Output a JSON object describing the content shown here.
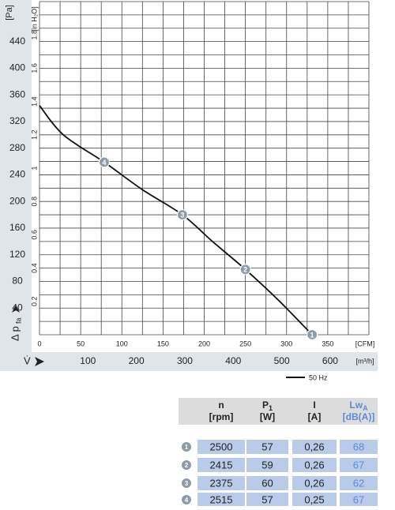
{
  "chart_data": {
    "type": "line",
    "y_unit": "[Pa]",
    "y2_unit": "[in H₂O]",
    "x_unit": "[CFM]",
    "x2_unit": "[m³/h]",
    "y_label": "Δ p",
    "y_label_sub": "fa",
    "x_label": "V̇",
    "xlim": [
      0,
      400
    ],
    "xticks": [
      0,
      50,
      100,
      150,
      200,
      250,
      300,
      350
    ],
    "x2lim": [
      0,
      680
    ],
    "x2ticks": [
      100,
      200,
      300,
      400,
      500,
      600
    ],
    "ylim": [
      0,
      500
    ],
    "yticks": [
      40,
      80,
      120,
      160,
      200,
      240,
      280,
      320,
      360,
      400,
      440
    ],
    "y2lim": [
      0,
      2.0
    ],
    "y2ticks": [
      0.2,
      0.4,
      0.6,
      0.8,
      1.0,
      1.2,
      1.4,
      1.6,
      1.8
    ],
    "grid": true,
    "grid_step": {
      "x": 25,
      "y": 20
    },
    "series": [
      {
        "name": "50 Hz",
        "color": "#111111",
        "x": [
          0,
          29,
          78.6,
          124.6,
          173.5,
          210,
          250,
          290,
          331
        ],
        "values": [
          344,
          300,
          259,
          218,
          180,
          140,
          98,
          52,
          0
        ]
      }
    ],
    "operating_points": {
      "labels": [
        "1",
        "2",
        "3",
        "4"
      ],
      "x": [
        331,
        250,
        173.5,
        78.6
      ],
      "y": [
        0,
        98,
        180,
        259
      ]
    },
    "table": {
      "columns": [
        {
          "name": "n",
          "unit": "[rpm]"
        },
        {
          "name": "P",
          "sub": "1",
          "unit": "[W]"
        },
        {
          "name": "I",
          "unit": "[A]"
        },
        {
          "name": "Lw",
          "sub": "A",
          "unit": "[dB(A)]"
        }
      ],
      "rows": [
        [
          "1",
          2500,
          57,
          "0,26",
          68
        ],
        [
          "2",
          2415,
          59,
          "0,26",
          67
        ],
        [
          "3",
          2375,
          60,
          "0,26",
          62
        ],
        [
          "4",
          2515,
          57,
          "0,25",
          67
        ]
      ]
    }
  }
}
